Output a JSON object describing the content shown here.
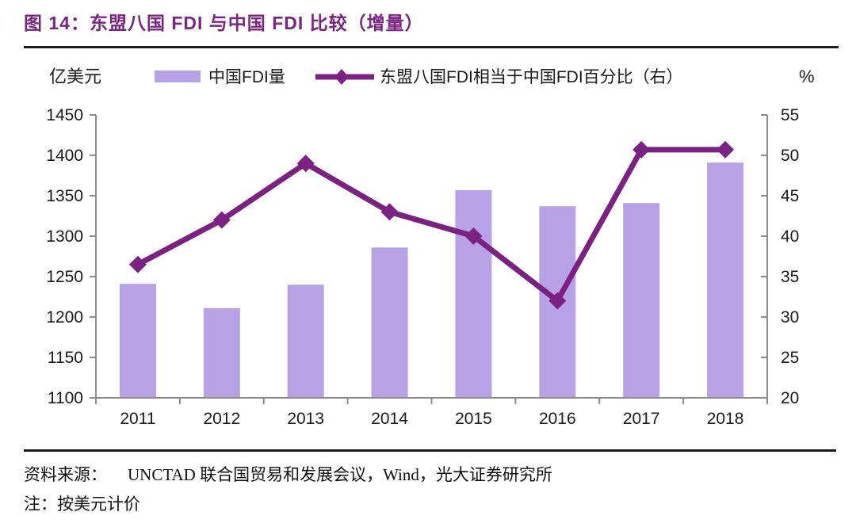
{
  "title": "图 14：东盟八国 FDI 与中国 FDI 比较（增量）",
  "colors": {
    "title": "#7b2483",
    "bar": "#b7a2e5",
    "line": "#7a2182",
    "axis": "#8c8c8c",
    "tick_text": "#1a1a1a",
    "rule": "#1a1a1a"
  },
  "chart_data": {
    "type": "bar",
    "combo": "bar+line",
    "categories": [
      "2011",
      "2012",
      "2013",
      "2014",
      "2015",
      "2016",
      "2017",
      "2018"
    ],
    "series": [
      {
        "name": "中国FDI量",
        "type": "bar",
        "axis": "left",
        "values": [
          1241,
          1211,
          1240,
          1286,
          1357,
          1337,
          1341,
          1391
        ]
      },
      {
        "name": "东盟八国FDI相当于中国FDI百分比（右）",
        "type": "line",
        "axis": "right",
        "values": [
          36.5,
          42,
          49,
          43,
          40,
          32,
          50.7,
          50.7
        ]
      }
    ],
    "left_axis": {
      "label": "亿美元",
      "min": 1100,
      "max": 1450,
      "step": 50,
      "ticks": [
        "1450",
        "1400",
        "1350",
        "1300",
        "1250",
        "1200",
        "1150",
        "1100"
      ]
    },
    "right_axis": {
      "label": "%",
      "min": 20,
      "max": 55,
      "step": 5,
      "ticks": [
        "55",
        "50",
        "45",
        "40",
        "35",
        "30",
        "25",
        "20"
      ]
    },
    "grid": false,
    "legend_position": "top"
  },
  "footer": {
    "source_label": "资料来源：",
    "source_text": "UNCTAD 联合国贸易和发展会议，Wind，光大证券研究所",
    "note": "注：按美元计价"
  }
}
